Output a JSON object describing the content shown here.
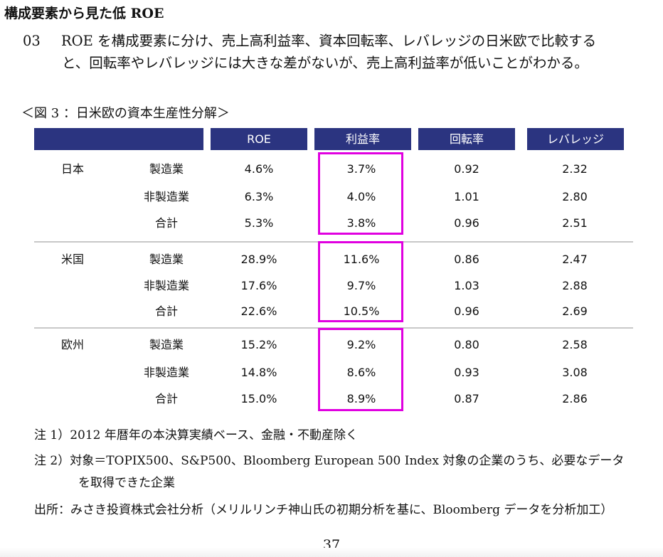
{
  "heading": "構成要素から見た低 ROE",
  "paragraph": {
    "number": "03",
    "line1": "ROE を構成要素に分け、売上高利益率、資本回転率、レバレッジの日米欧で比較する",
    "line2": "と、回転率やレバレッジには大きな差がないが、売上高利益率が低いことがわかる。"
  },
  "figure_caption": "＜図 3 ：日米欧の資本生産性分解＞",
  "table": {
    "headers": [
      "ROE",
      "利益率",
      "回転率",
      "レバレッジ"
    ],
    "colors": {
      "header_bg": "#2b3480",
      "highlight": "#e000e0",
      "divider": "#c8c8c8"
    },
    "groups": [
      {
        "region": "日本",
        "rows": [
          {
            "sector": "製造業",
            "roe": "4.6%",
            "profit": "3.7%",
            "turnover": "0.92",
            "leverage": "2.32"
          },
          {
            "sector": "非製造業",
            "roe": "6.3%",
            "profit": "4.0%",
            "turnover": "1.01",
            "leverage": "2.80"
          },
          {
            "sector": "合計",
            "roe": "5.3%",
            "profit": "3.8%",
            "turnover": "0.96",
            "leverage": "2.51"
          }
        ]
      },
      {
        "region": "米国",
        "rows": [
          {
            "sector": "製造業",
            "roe": "28.9%",
            "profit": "11.6%",
            "turnover": "0.86",
            "leverage": "2.47"
          },
          {
            "sector": "非製造業",
            "roe": "17.6%",
            "profit": "9.7%",
            "turnover": "1.03",
            "leverage": "2.88"
          },
          {
            "sector": "合計",
            "roe": "22.6%",
            "profit": "10.5%",
            "turnover": "0.96",
            "leverage": "2.69"
          }
        ]
      },
      {
        "region": "欧州",
        "rows": [
          {
            "sector": "製造業",
            "roe": "15.2%",
            "profit": "9.2%",
            "turnover": "0.80",
            "leverage": "2.58"
          },
          {
            "sector": "非製造業",
            "roe": "14.8%",
            "profit": "8.6%",
            "turnover": "0.93",
            "leverage": "3.08"
          },
          {
            "sector": "合計",
            "roe": "15.0%",
            "profit": "8.9%",
            "turnover": "0.87",
            "leverage": "2.86"
          }
        ]
      }
    ]
  },
  "notes": {
    "note1": "注 1）2012 年暦年の本決算実績ベース、金融・不動産除く",
    "note2_line1": "注 2）対象＝TOPIX500、S&P500、Bloomberg European 500 Index 対象の企業のうち、必要なデータ",
    "note2_line2": "を取得できた企業",
    "source": "出所：みさき投資株式会社分析（メリルリンチ神山氏の初期分析を基に、Bloomberg データを分析加工）"
  },
  "page_number": "37"
}
